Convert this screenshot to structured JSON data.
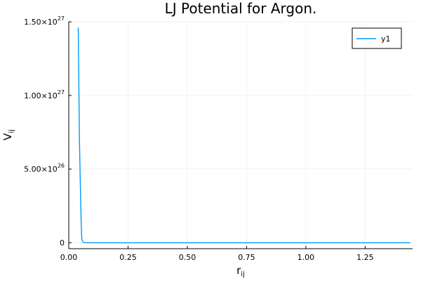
{
  "chart_data": {
    "type": "line",
    "title": "LJ Potential for Argon.",
    "xlabel": "r",
    "xlabel_sub": "ij",
    "ylabel": "V",
    "ylabel_sub": "ij",
    "xlim": [
      0,
      1.45
    ],
    "ylim": [
      -4e+25,
      1.5e+27
    ],
    "grid": true,
    "legend": "top-right",
    "x_ticks": [
      {
        "value": 0,
        "label": "0.00"
      },
      {
        "value": 0.25,
        "label": "0.25"
      },
      {
        "value": 0.5,
        "label": "0.50"
      },
      {
        "value": 0.75,
        "label": "0.75"
      },
      {
        "value": 1.0,
        "label": "1.00"
      },
      {
        "value": 1.25,
        "label": "1.25"
      }
    ],
    "y_ticks": [
      {
        "value": 0,
        "mantissa": "0",
        "exp": ""
      },
      {
        "value": 5e+26,
        "mantissa": "5.00×10",
        "exp": "26"
      },
      {
        "value": 1e+27,
        "mantissa": "1.00×10",
        "exp": "27"
      },
      {
        "value": 1.5e+27,
        "mantissa": "1.50×10",
        "exp": "27"
      }
    ],
    "series": [
      {
        "name": "y1",
        "color": "#009AFA",
        "x": [
          0.04,
          0.045,
          0.05,
          0.052,
          0.055,
          0.06,
          0.065,
          0.07,
          0.08,
          0.1,
          0.2,
          0.4,
          0.6,
          0.8,
          1.0,
          1.2,
          1.44
        ],
        "y": [
          1.46e+27,
          7e+26,
          3e+26,
          1.6e+26,
          2.5e+25,
          6e+24,
          1.5e+24,
          4e+23,
          5e+22,
          0,
          0,
          0,
          0,
          0,
          0,
          0,
          0
        ]
      }
    ]
  }
}
